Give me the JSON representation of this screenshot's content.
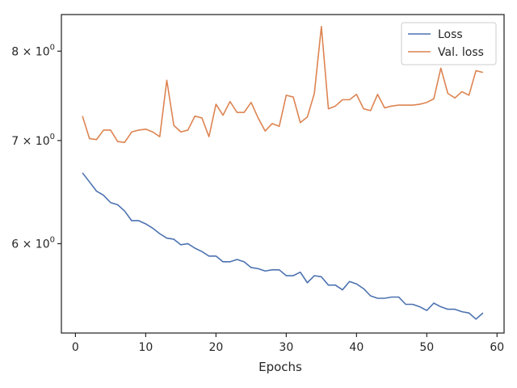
{
  "chart_data": {
    "type": "line",
    "title": "",
    "xlabel": "Epochs",
    "ylabel": "",
    "yscale": "log",
    "xlim": [
      -2,
      61
    ],
    "ylim": [
      5.25,
      8.45
    ],
    "grid": false,
    "legend_placement": "top-right",
    "x_ticks": [
      0,
      10,
      20,
      30,
      40,
      50,
      60
    ],
    "x_tick_labels": [
      "0",
      "10",
      "20",
      "30",
      "40",
      "50",
      "60"
    ],
    "y_ticks": [
      6,
      7,
      8
    ],
    "y_tick_labels": [
      {
        "base": "6 × 10",
        "exp": "0"
      },
      {
        "base": "7 × 10",
        "exp": "0"
      },
      {
        "base": "8 × 10",
        "exp": "0"
      }
    ],
    "x": [
      1,
      2,
      3,
      4,
      5,
      6,
      7,
      8,
      9,
      10,
      11,
      12,
      13,
      14,
      15,
      16,
      17,
      18,
      19,
      20,
      21,
      22,
      23,
      24,
      25,
      26,
      27,
      28,
      29,
      30,
      31,
      32,
      33,
      34,
      35,
      36,
      37,
      38,
      39,
      40,
      41,
      42,
      43,
      44,
      45,
      46,
      47,
      48,
      49,
      50,
      51,
      52,
      53,
      54,
      55,
      56,
      57,
      58
    ],
    "series": [
      {
        "name": "Loss",
        "color": "#4c72b0",
        "values": [
          6.67,
          6.58,
          6.49,
          6.45,
          6.38,
          6.36,
          6.3,
          6.21,
          6.21,
          6.18,
          6.14,
          6.09,
          6.05,
          6.04,
          5.99,
          6.0,
          5.96,
          5.93,
          5.89,
          5.89,
          5.84,
          5.84,
          5.86,
          5.84,
          5.79,
          5.78,
          5.76,
          5.77,
          5.77,
          5.72,
          5.72,
          5.75,
          5.66,
          5.72,
          5.71,
          5.64,
          5.64,
          5.6,
          5.67,
          5.65,
          5.61,
          5.55,
          5.53,
          5.53,
          5.54,
          5.54,
          5.48,
          5.48,
          5.46,
          5.43,
          5.49,
          5.46,
          5.44,
          5.44,
          5.42,
          5.41,
          5.36,
          5.41
        ]
      },
      {
        "name": "Val. loss",
        "color": "#dd8452",
        "values": [
          7.26,
          7.02,
          7.01,
          7.11,
          7.11,
          6.99,
          6.98,
          7.09,
          7.11,
          7.12,
          7.09,
          7.04,
          7.66,
          7.16,
          7.09,
          7.11,
          7.26,
          7.24,
          7.04,
          7.39,
          7.27,
          7.42,
          7.3,
          7.3,
          7.41,
          7.24,
          7.1,
          7.18,
          7.15,
          7.49,
          7.47,
          7.19,
          7.25,
          7.51,
          8.3,
          7.34,
          7.37,
          7.44,
          7.44,
          7.5,
          7.34,
          7.32,
          7.5,
          7.35,
          7.37,
          7.38,
          7.38,
          7.38,
          7.39,
          7.41,
          7.45,
          7.8,
          7.51,
          7.46,
          7.53,
          7.49,
          7.77,
          7.75
        ]
      }
    ]
  }
}
